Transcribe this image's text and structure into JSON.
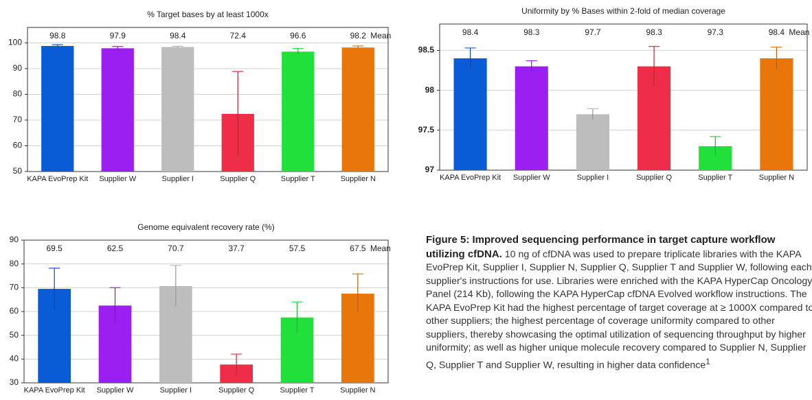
{
  "chart_data": [
    {
      "type": "bar",
      "title": "% Target bases by at least 1000x",
      "categories": [
        "KAPA EvoPrep Kit",
        "Supplier W",
        "Supplier I",
        "Supplier Q",
        "Supplier T",
        "Supplier N"
      ],
      "values": [
        98.8,
        97.9,
        98.4,
        72.4,
        96.6,
        98.2
      ],
      "errors": [
        0.5,
        0.7,
        0.3,
        16.5,
        1.2,
        0.6
      ],
      "mean_label": "Mean",
      "colors": [
        "#0a5bd6",
        "#9b1ff0",
        "#bdbdbd",
        "#ee2d48",
        "#22e03c",
        "#e8760a"
      ],
      "ylim": [
        50,
        106
      ],
      "yticks": [
        50,
        60,
        70,
        80,
        90,
        100
      ],
      "grid": true
    },
    {
      "type": "bar",
      "title": "Uniformity by % Bases within 2-fold of median coverage",
      "categories": [
        "KAPA EvoPrep Kit",
        "Supplier W",
        "Supplier I",
        "Supplier Q",
        "Supplier T",
        "Supplier N"
      ],
      "values": [
        98.4,
        98.3,
        97.7,
        98.3,
        97.3,
        98.4
      ],
      "errors": [
        0.13,
        0.07,
        0.07,
        0.25,
        0.12,
        0.14
      ],
      "mean_label": "Mean",
      "colors": [
        "#0a5bd6",
        "#9b1ff0",
        "#bdbdbd",
        "#ee2d48",
        "#22e03c",
        "#e8760a"
      ],
      "ylim": [
        97,
        98.83
      ],
      "yticks": [
        97,
        97.5,
        98,
        98.5
      ],
      "grid": true
    },
    {
      "type": "bar",
      "title": "Genome equivalent recovery rate (%)",
      "categories": [
        "KAPA EvoPrep Kit",
        "Supplier W",
        "Supplier I",
        "Supplier Q",
        "Supplier T",
        "Supplier N"
      ],
      "values": [
        69.5,
        62.5,
        70.7,
        37.7,
        57.5,
        67.5
      ],
      "errors": [
        8.7,
        7.5,
        8.7,
        4.4,
        6.5,
        8.3
      ],
      "mean_label": "Mean",
      "colors": [
        "#0a5bd6",
        "#9b1ff0",
        "#bdbdbd",
        "#ee2d48",
        "#22e03c",
        "#e8760a"
      ],
      "ylim": [
        30,
        90
      ],
      "yticks": [
        30,
        40,
        50,
        60,
        70,
        80,
        90
      ],
      "grid": true
    }
  ],
  "caption": {
    "title": "Figure 5: Improved sequencing performance in target capture workflow utilizing cfDNA.",
    "body": " 10 ng of cfDNA was used to prepare triplicate libraries with the KAPA EvoPrep Kit, Supplier I, Supplier N, Supplier Q, Supplier T and Supplier W, following each supplier's instructions for use. Libraries were enriched with the KAPA HyperCap Oncology Panel (214 Kb), following the KAPA HyperCap cfDNA Evolved workflow instructions. The KAPA EvoPrep Kit had the highest percentage of target coverage at ≥ 1000X compared to other suppliers; the highest percentage of coverage uniformity compared to other suppliers, thereby showcasing the optimal utilization of sequencing throughput by higher uniformity; as well as higher unique molecule recovery compared to Supplier N, Supplier Q, Supplier T and Supplier W, resulting in higher data confidence",
    "footnote": "1"
  }
}
